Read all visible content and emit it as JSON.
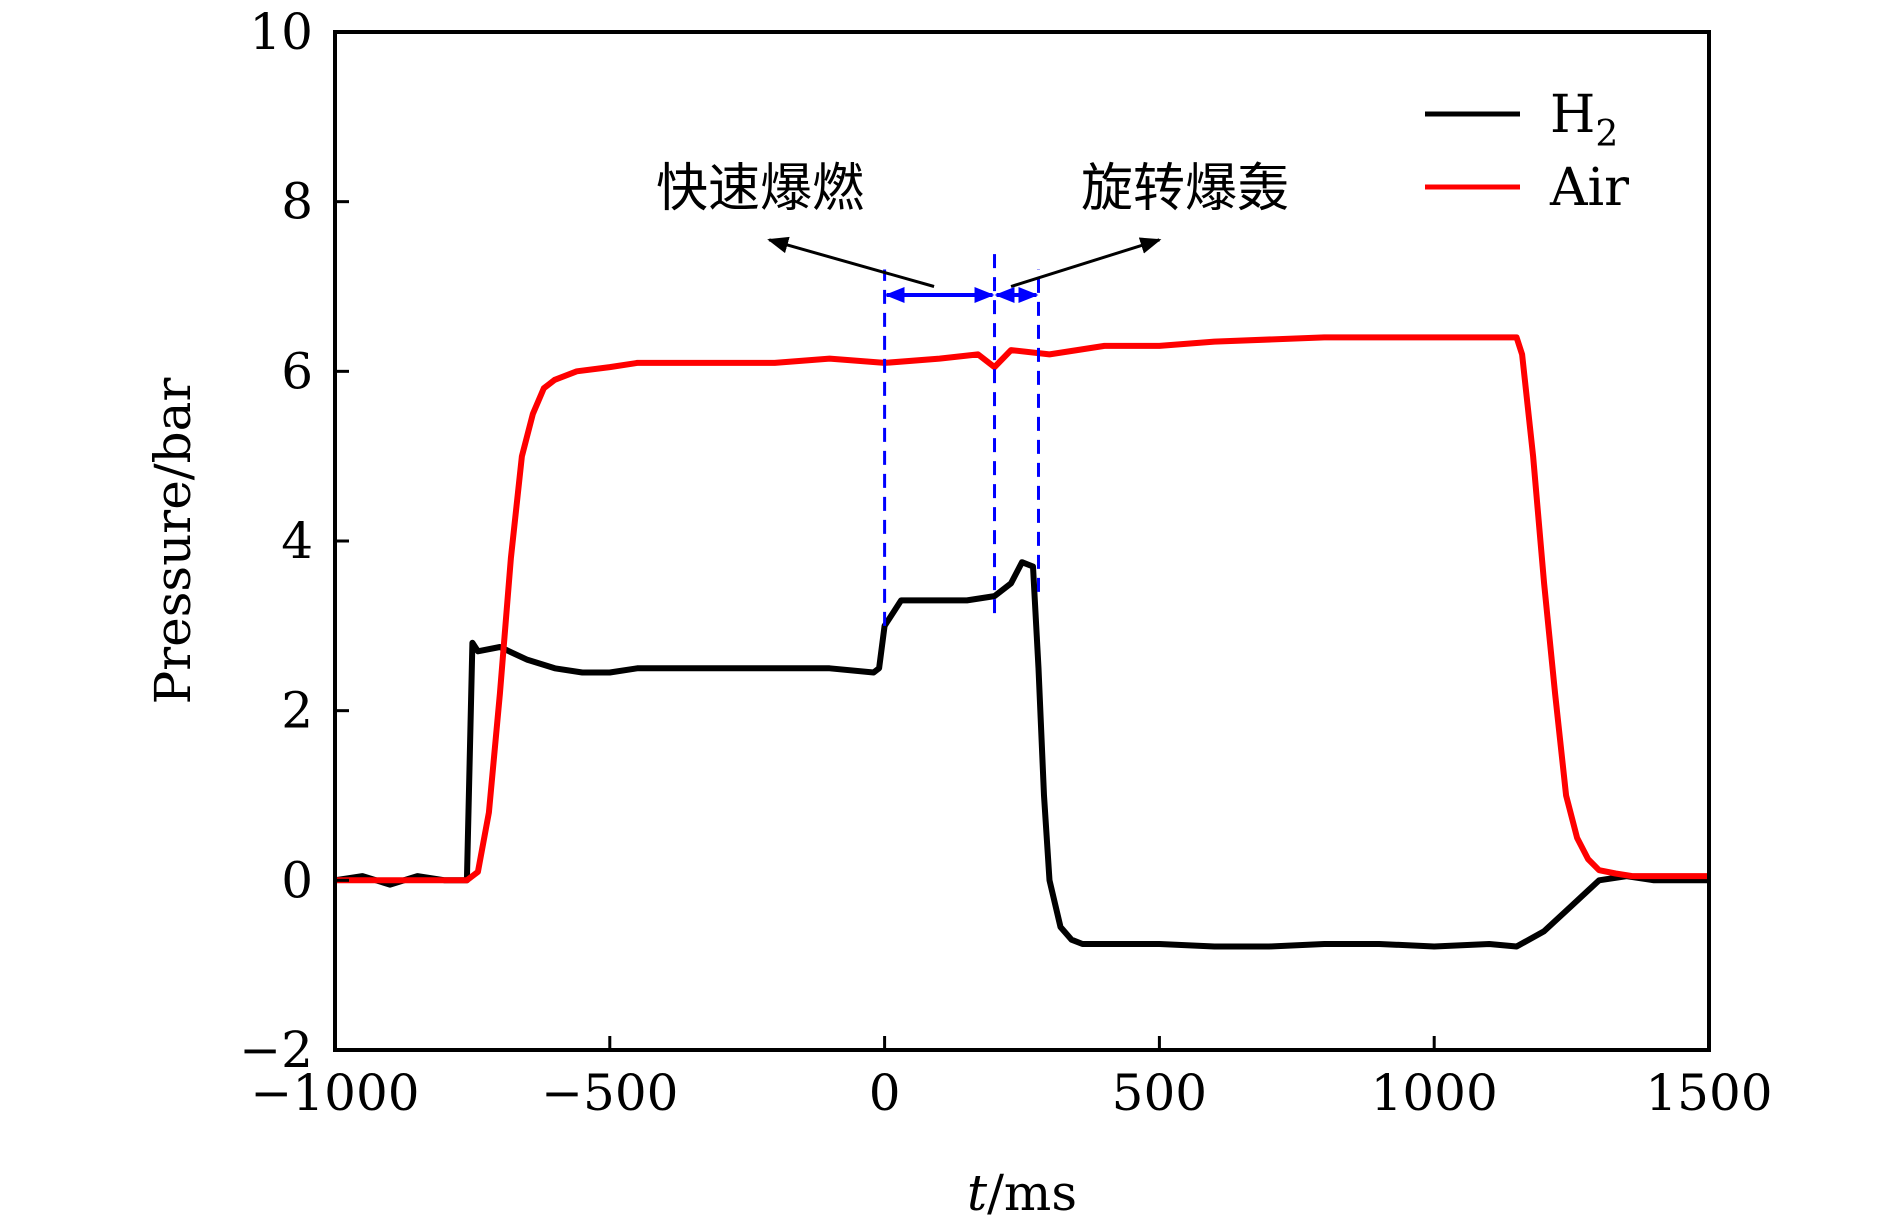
{
  "colors": {
    "h2": "#000000",
    "air": "#ff0000",
    "marker": "#0000ff",
    "axis": "#000000"
  },
  "chart_data": {
    "type": "line",
    "xlabel_italic": "t",
    "xlabel_rest": "/ms",
    "ylabel": "Pressure/bar",
    "xlim": [
      -1000,
      1500
    ],
    "ylim": [
      -2,
      10
    ],
    "xticks": [
      -1000,
      -500,
      0,
      500,
      1000,
      1500
    ],
    "xtick_labels": [
      "−1000",
      "−500",
      "0",
      "500",
      "1000",
      "1500"
    ],
    "yticks": [
      -2,
      0,
      2,
      4,
      6,
      8,
      10
    ],
    "ytick_labels": [
      "−2",
      "0",
      "2",
      "4",
      "6",
      "8",
      "10"
    ],
    "legend": {
      "position": "top-right",
      "h2_base": "H",
      "h2_sub": "2",
      "air": "Air"
    },
    "series": [
      {
        "name": "H2",
        "x": [
          -1000,
          -950,
          -900,
          -850,
          -800,
          -760,
          -750,
          -740,
          -700,
          -650,
          -600,
          -550,
          -500,
          -450,
          -400,
          -300,
          -200,
          -100,
          -20,
          -10,
          0,
          10,
          30,
          50,
          100,
          150,
          200,
          230,
          250,
          270,
          280,
          290,
          300,
          320,
          340,
          360,
          400,
          500,
          600,
          700,
          800,
          900,
          1000,
          1100,
          1150,
          1200,
          1250,
          1300,
          1350,
          1400,
          1450,
          1500
        ],
        "y": [
          0.0,
          0.05,
          -0.05,
          0.05,
          0.0,
          0.0,
          2.8,
          2.7,
          2.75,
          2.6,
          2.5,
          2.45,
          2.45,
          2.5,
          2.5,
          2.5,
          2.5,
          2.5,
          2.45,
          2.5,
          3.0,
          3.1,
          3.3,
          3.3,
          3.3,
          3.3,
          3.35,
          3.5,
          3.75,
          3.7,
          2.5,
          1.0,
          0.0,
          -0.55,
          -0.7,
          -0.75,
          -0.75,
          -0.75,
          -0.78,
          -0.78,
          -0.75,
          -0.75,
          -0.78,
          -0.75,
          -0.78,
          -0.6,
          -0.3,
          0.0,
          0.05,
          0.0,
          0.0,
          0.0
        ]
      },
      {
        "name": "Air",
        "x": [
          -1000,
          -900,
          -800,
          -760,
          -740,
          -720,
          -700,
          -680,
          -660,
          -640,
          -620,
          -600,
          -560,
          -500,
          -450,
          -400,
          -300,
          -200,
          -100,
          0,
          100,
          170,
          200,
          230,
          300,
          350,
          400,
          500,
          600,
          800,
          1000,
          1100,
          1150,
          1160,
          1180,
          1200,
          1220,
          1240,
          1260,
          1280,
          1300,
          1330,
          1360,
          1400,
          1450,
          1500
        ],
        "y": [
          0.0,
          0.0,
          0.0,
          0.0,
          0.1,
          0.8,
          2.2,
          3.8,
          5.0,
          5.5,
          5.8,
          5.9,
          6.0,
          6.05,
          6.1,
          6.1,
          6.1,
          6.1,
          6.15,
          6.1,
          6.15,
          6.2,
          6.05,
          6.25,
          6.2,
          6.25,
          6.3,
          6.3,
          6.35,
          6.4,
          6.4,
          6.4,
          6.4,
          6.2,
          5.0,
          3.5,
          2.2,
          1.0,
          0.5,
          0.25,
          0.12,
          0.08,
          0.05,
          0.05,
          0.05,
          0.05
        ]
      }
    ],
    "annotations": {
      "label_left": "快速爆燃",
      "label_right": "旋转爆轰",
      "marker_times": [
        0,
        200,
        280
      ],
      "bracket_level": 6.9,
      "left_arrow_tip": [
        -210,
        7.55
      ],
      "left_arrow_tail": [
        90,
        7.0
      ],
      "right_arrow_tail": [
        230,
        7.0
      ],
      "right_arrow_tip": [
        500,
        7.55
      ]
    }
  }
}
